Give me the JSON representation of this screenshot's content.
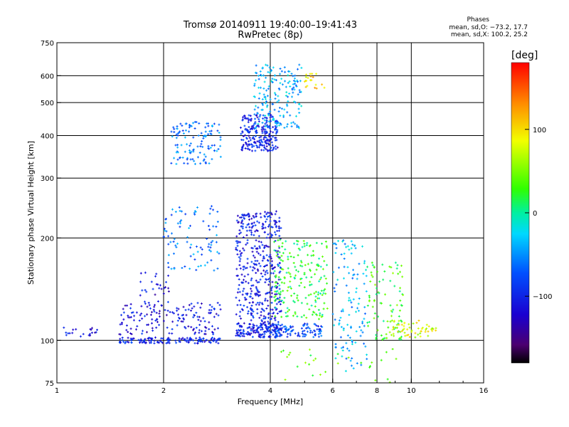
{
  "header": {
    "title_line1": "Tromsø 20140911 19:40:00–19:41:43",
    "title_line2": "RwPretec (8p)"
  },
  "phase_box": {
    "title": "Phases",
    "o_stats": "mean, sd,O: −73.2, 17.7",
    "x_stats": "mean, sd,X: 100.2, 25.2"
  },
  "colorbar": {
    "unit": "[deg]",
    "ticks": [
      "100",
      "0",
      "−100"
    ],
    "tick_values": [
      100,
      0,
      -100
    ],
    "range": [
      -180,
      180
    ]
  },
  "chart_data": {
    "type": "scatter",
    "xlabel": "Frequency [MHz]",
    "ylabel": "Stationary phase Virtual Height [km]",
    "xscale": "log",
    "yscale": "log",
    "xlim": [
      1,
      16
    ],
    "ylim": [
      75,
      750
    ],
    "xticks": [
      1,
      2,
      4,
      6,
      8,
      10,
      16
    ],
    "xtick_labels": [
      "1",
      "2",
      "4",
      "6",
      "8",
      "10",
      "16"
    ],
    "yticks": [
      75,
      100,
      200,
      300,
      400,
      500,
      600,
      750
    ],
    "ytick_labels": [
      "75",
      "100",
      "200",
      "300",
      "400",
      "500",
      "600",
      "750"
    ],
    "grid": true,
    "clusters": [
      {
        "x": [
          1.0,
          1.3
        ],
        "y": [
          102,
          110
        ],
        "phase_mean": -110,
        "count": 20
      },
      {
        "x": [
          1.5,
          2.9
        ],
        "y": [
          98,
          102
        ],
        "phase_mean": -100,
        "count": 140
      },
      {
        "x": [
          1.5,
          2.9
        ],
        "y": [
          104,
          130
        ],
        "phase_mean": -110,
        "count": 160
      },
      {
        "x": [
          1.7,
          2.1
        ],
        "y": [
          130,
          160
        ],
        "phase_mean": -110,
        "count": 25
      },
      {
        "x": [
          2.0,
          2.9
        ],
        "y": [
          160,
          250
        ],
        "phase_mean": -60,
        "count": 90
      },
      {
        "x": [
          2.1,
          2.9
        ],
        "y": [
          330,
          440
        ],
        "phase_mean": -60,
        "count": 120
      },
      {
        "x": [
          3.2,
          4.3
        ],
        "y": [
          102,
          112
        ],
        "phase_mean": -100,
        "count": 150
      },
      {
        "x": [
          3.2,
          4.3
        ],
        "y": [
          112,
          240
        ],
        "phase_mean": -105,
        "count": 420
      },
      {
        "x": [
          3.3,
          4.2
        ],
        "y": [
          360,
          460
        ],
        "phase_mean": -100,
        "count": 220
      },
      {
        "x": [
          3.6,
          4.9
        ],
        "y": [
          420,
          650
        ],
        "phase_mean": -40,
        "count": 180
      },
      {
        "x": [
          4.1,
          5.8
        ],
        "y": [
          115,
          200
        ],
        "phase_mean": 20,
        "count": 200
      },
      {
        "x": [
          4.1,
          5.6
        ],
        "y": [
          102,
          112
        ],
        "phase_mean": -80,
        "count": 100
      },
      {
        "x": [
          5.0,
          5.7
        ],
        "y": [
          550,
          610
        ],
        "phase_mean": 100,
        "count": 20
      },
      {
        "x": [
          6.0,
          7.5
        ],
        "y": [
          80,
          200
        ],
        "phase_mean": -40,
        "count": 120
      },
      {
        "x": [
          7.5,
          9.5
        ],
        "y": [
          100,
          170
        ],
        "phase_mean": 30,
        "count": 90
      },
      {
        "x": [
          8.5,
          11.8
        ],
        "y": [
          102,
          115
        ],
        "phase_mean": 80,
        "count": 60
      },
      {
        "x": [
          4.2,
          9.5
        ],
        "y": [
          75,
          95
        ],
        "phase_mean": 40,
        "count": 30
      }
    ]
  }
}
